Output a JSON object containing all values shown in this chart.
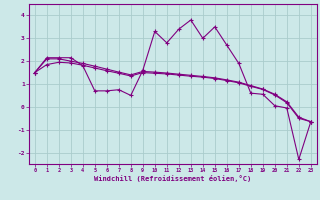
{
  "xlabel": "Windchill (Refroidissement éolien,°C)",
  "bg_color": "#cce8e8",
  "line_color": "#800080",
  "grid_color": "#aacccc",
  "x_values": [
    0,
    1,
    2,
    3,
    4,
    5,
    6,
    7,
    8,
    9,
    10,
    11,
    12,
    13,
    14,
    15,
    16,
    17,
    18,
    19,
    20,
    21,
    22,
    23
  ],
  "series1": [
    1.5,
    2.15,
    2.15,
    2.15,
    1.8,
    0.7,
    0.7,
    0.75,
    0.5,
    1.6,
    3.3,
    2.8,
    3.4,
    3.8,
    3.0,
    3.5,
    2.7,
    1.9,
    0.6,
    0.55,
    0.05,
    -0.05,
    -2.3,
    -0.65
  ],
  "series2": [
    1.5,
    2.1,
    2.1,
    2.0,
    1.9,
    1.78,
    1.65,
    1.52,
    1.4,
    1.55,
    1.52,
    1.48,
    1.43,
    1.38,
    1.33,
    1.27,
    1.18,
    1.08,
    0.93,
    0.78,
    0.55,
    0.22,
    -0.45,
    -0.65
  ],
  "series3": [
    1.5,
    1.85,
    1.95,
    1.92,
    1.82,
    1.7,
    1.58,
    1.47,
    1.35,
    1.5,
    1.47,
    1.44,
    1.39,
    1.34,
    1.3,
    1.24,
    1.15,
    1.05,
    0.9,
    0.76,
    0.52,
    0.18,
    -0.5,
    -0.65
  ],
  "ylim": [
    -2.5,
    4.5
  ],
  "xlim": [
    -0.5,
    23.5
  ],
  "yticks": [
    -2,
    -1,
    0,
    1,
    2,
    3,
    4
  ],
  "xticks": [
    0,
    1,
    2,
    3,
    4,
    5,
    6,
    7,
    8,
    9,
    10,
    11,
    12,
    13,
    14,
    15,
    16,
    17,
    18,
    19,
    20,
    21,
    22,
    23
  ]
}
